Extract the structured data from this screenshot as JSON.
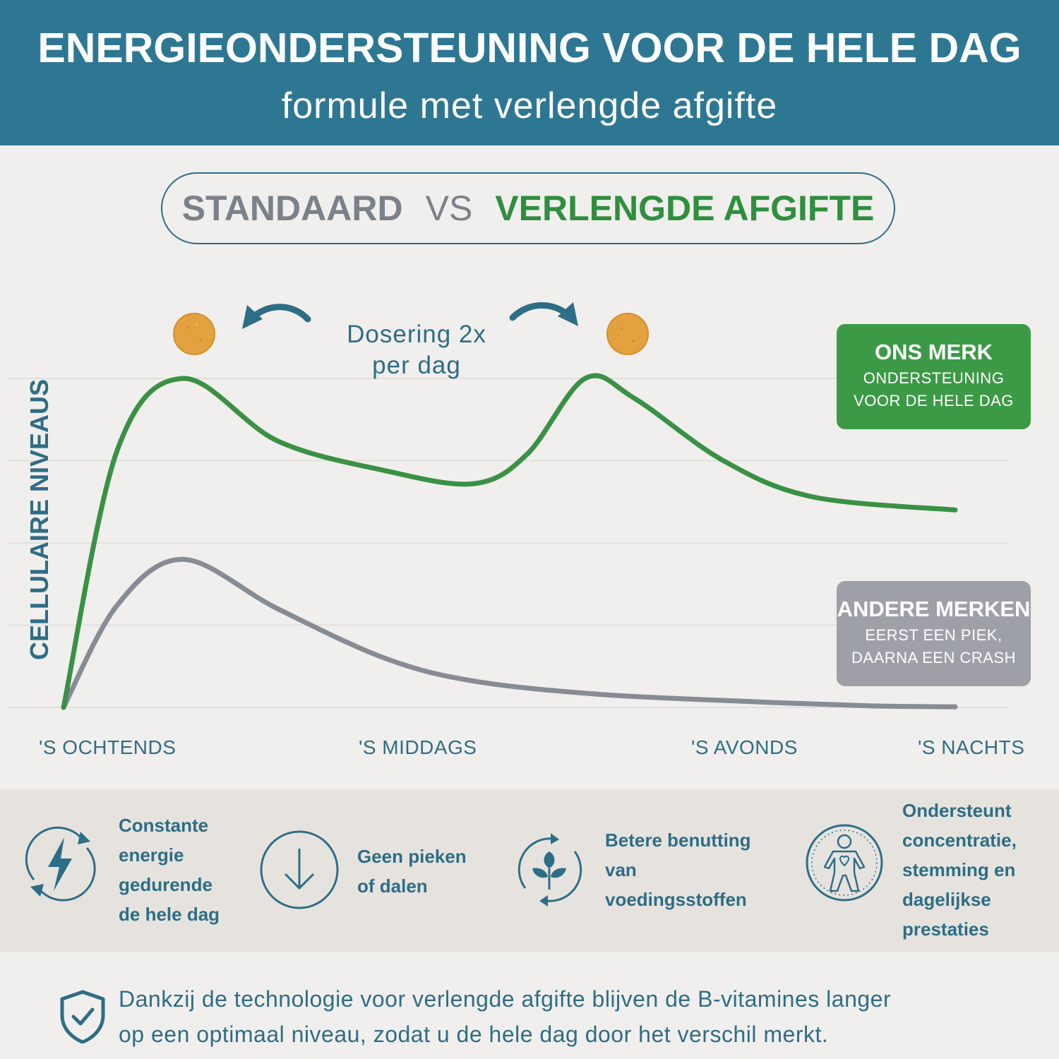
{
  "header": {
    "title": "ENERGIEONDERSTEUNING VOOR DE HELE DAG",
    "subtitle": "formule met verlengde afgifte"
  },
  "comparison": {
    "standard": "STANDAARD",
    "vs": "VS",
    "extended": "VERLENGDE AFGIFTE"
  },
  "dosing": {
    "line1": "Dosering 2x",
    "line2": "per dag"
  },
  "callouts": {
    "ours": {
      "title": "ONS MERK",
      "line1": "ONDERSTEUNING",
      "line2": "VOOR DE HELE DAG"
    },
    "others": {
      "title": "ANDERE MERKEN",
      "line1": "EERST EEN PIEK,",
      "line2": "DAARNA EEN CRASH"
    }
  },
  "colors": {
    "header_bg": "#2e7793",
    "accent_blue": "#2e6d86",
    "green": "#3a9145",
    "grey": "#878c94",
    "pill_orange": "#e3a13f"
  },
  "chart_data": {
    "type": "line",
    "ylabel": "CELLULAIRE NIVEAUS",
    "x_ticks": [
      "'S OCHTENDS",
      "'S MIDDAGS",
      "'S AVONDS",
      "'S NACHTS"
    ],
    "ylim": [
      0,
      100
    ],
    "grid": true,
    "legend": "right",
    "series": [
      {
        "name": "ONS MERK",
        "color": "#3a9145",
        "x": [
          0.0,
          0.06,
          0.134,
          0.24,
          0.36,
          0.46,
          0.52,
          0.585,
          0.64,
          0.74,
          0.84,
          1.0
        ],
        "y": [
          0,
          78,
          100,
          81,
          72,
          68,
          77,
          100,
          94,
          75,
          64,
          60
        ]
      },
      {
        "name": "ANDERE MERKEN",
        "color": "#878c94",
        "x": [
          0.0,
          0.06,
          0.134,
          0.24,
          0.36,
          0.46,
          0.6,
          0.75,
          0.9,
          1.0
        ],
        "y": [
          0,
          31,
          45,
          30,
          15,
          8,
          4,
          2,
          0.5,
          0.2
        ]
      }
    ]
  },
  "benefits": [
    {
      "icon": "energy-bolt-icon",
      "lines": [
        "Constante",
        "energie",
        "gedurende",
        "de hele dag"
      ]
    },
    {
      "icon": "arrow-down-circle-icon",
      "lines": [
        "Geen pieken",
        "of dalen"
      ]
    },
    {
      "icon": "leaf-cycle-icon",
      "lines": [
        "Betere benutting",
        "van",
        "voedingsstoffen"
      ]
    },
    {
      "icon": "person-heart-icon",
      "lines": [
        "Ondersteunt",
        "concentratie,",
        "stemming en",
        "dagelijkse",
        "prestaties"
      ]
    }
  ],
  "footer": {
    "icon": "shield-check-icon",
    "line1": "Dankzij de technologie voor verlengde afgifte blijven de B-vitamines langer",
    "line2": "op een optimaal niveau, zodat u de hele dag door het verschil merkt."
  }
}
